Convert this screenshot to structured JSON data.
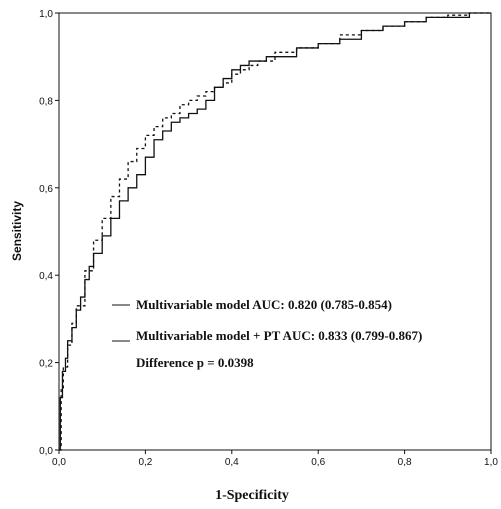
{
  "chart_data": {
    "type": "line",
    "xlabel": "1-Specificity",
    "ylabel": "Sensitivity",
    "xlim": [
      0,
      1
    ],
    "ylim": [
      0,
      1
    ],
    "x_ticks": [
      "0,0",
      "0,2",
      "0,4",
      "0,6",
      "0,8",
      "1,0"
    ],
    "y_ticks": [
      "0,0",
      "0,2",
      "0,4",
      "0,6",
      "0,8",
      "1,0"
    ],
    "grid": false,
    "legend_position": "bottom-right",
    "series": [
      {
        "name": "Multivariable model AUC: 0.820 (0.785-0.854)",
        "style": "dotted",
        "color": "#111111",
        "x": [
          0,
          0.005,
          0.01,
          0.02,
          0.03,
          0.04,
          0.06,
          0.08,
          0.1,
          0.12,
          0.14,
          0.16,
          0.18,
          0.2,
          0.22,
          0.24,
          0.26,
          0.28,
          0.3,
          0.32,
          0.34,
          0.36,
          0.38,
          0.4,
          0.42,
          0.44,
          0.46,
          0.5,
          0.55,
          0.6,
          0.65,
          0.7,
          0.75,
          0.8,
          0.85,
          0.9,
          0.95,
          1.0
        ],
        "y": [
          0,
          0.14,
          0.19,
          0.24,
          0.29,
          0.33,
          0.41,
          0.48,
          0.53,
          0.58,
          0.62,
          0.66,
          0.69,
          0.72,
          0.74,
          0.76,
          0.77,
          0.79,
          0.8,
          0.81,
          0.82,
          0.83,
          0.84,
          0.86,
          0.87,
          0.88,
          0.89,
          0.91,
          0.92,
          0.93,
          0.95,
          0.96,
          0.97,
          0.98,
          0.99,
          0.995,
          1.0,
          1.0
        ]
      },
      {
        "name": "Multivariable model + PT AUC: 0.833 (0.799-0.867)",
        "style": "solid",
        "color": "#111111",
        "x": [
          0,
          0.003,
          0.008,
          0.015,
          0.02,
          0.03,
          0.04,
          0.05,
          0.06,
          0.07,
          0.08,
          0.1,
          0.12,
          0.14,
          0.16,
          0.18,
          0.2,
          0.22,
          0.24,
          0.26,
          0.28,
          0.3,
          0.32,
          0.34,
          0.36,
          0.38,
          0.4,
          0.42,
          0.44,
          0.46,
          0.48,
          0.5,
          0.55,
          0.6,
          0.65,
          0.7,
          0.75,
          0.8,
          0.85,
          0.9,
          0.95,
          1.0
        ],
        "y": [
          0,
          0.12,
          0.18,
          0.21,
          0.25,
          0.28,
          0.32,
          0.35,
          0.39,
          0.42,
          0.45,
          0.49,
          0.53,
          0.57,
          0.6,
          0.63,
          0.67,
          0.71,
          0.73,
          0.75,
          0.76,
          0.77,
          0.78,
          0.8,
          0.83,
          0.85,
          0.87,
          0.88,
          0.89,
          0.89,
          0.9,
          0.9,
          0.92,
          0.93,
          0.94,
          0.96,
          0.97,
          0.98,
          0.99,
          0.99,
          1.0,
          1.0
        ]
      }
    ],
    "annotations": [
      "Difference p = 0.0398"
    ]
  }
}
